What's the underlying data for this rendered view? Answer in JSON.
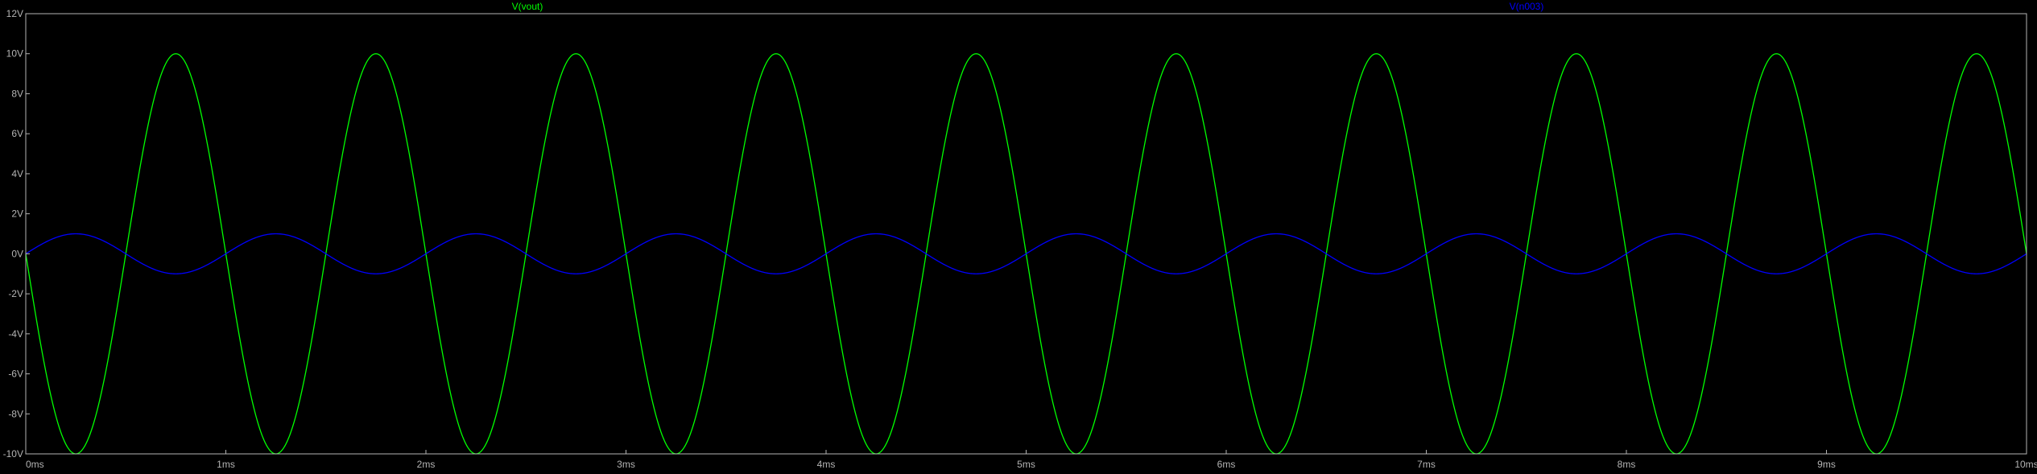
{
  "chart_data": {
    "type": "line",
    "title": "",
    "xlabel": "",
    "ylabel": "",
    "xlim": [
      0,
      10
    ],
    "ylim": [
      -10,
      12
    ],
    "x_unit": "ms",
    "y_unit": "V",
    "grid": false,
    "legend_position": "top",
    "x_ticks": [
      "0ms",
      "1ms",
      "2ms",
      "3ms",
      "4ms",
      "5ms",
      "6ms",
      "7ms",
      "8ms",
      "9ms",
      "10ms"
    ],
    "y_ticks": [
      "-10V",
      "-8V",
      "-6V",
      "-4V",
      "-2V",
      "0V",
      "2V",
      "4V",
      "6V",
      "8V",
      "10V",
      "12V"
    ],
    "series": [
      {
        "name": "V(vout)",
        "color": "#00ff00",
        "waveform": "sine",
        "amplitude": 10,
        "offset": 0,
        "frequency_per_ms": 1,
        "phase_deg": 180,
        "x": [
          0,
          0.25,
          0.5,
          0.75,
          1,
          1.25,
          1.5,
          1.75,
          2,
          2.25,
          2.5,
          2.75,
          3,
          3.25,
          3.5,
          3.75,
          4,
          4.25,
          4.5,
          4.75,
          5,
          5.25,
          5.5,
          5.75,
          6,
          6.25,
          6.5,
          6.75,
          7,
          7.25,
          7.5,
          7.75,
          8,
          8.25,
          8.5,
          8.75,
          9,
          9.25,
          9.5,
          9.75,
          10
        ],
        "values": [
          0,
          -10,
          0,
          10,
          0,
          -10,
          0,
          10,
          0,
          -10,
          0,
          10,
          0,
          -10,
          0,
          10,
          0,
          -10,
          0,
          10,
          0,
          -10,
          0,
          10,
          0,
          -10,
          0,
          10,
          0,
          -10,
          0,
          10,
          0,
          -10,
          0,
          10,
          0,
          -10,
          0,
          10,
          0
        ]
      },
      {
        "name": "V(n003)",
        "color": "#0000ff",
        "waveform": "sine",
        "amplitude": 1,
        "offset": 0,
        "frequency_per_ms": 1,
        "phase_deg": 0,
        "x": [
          0,
          0.25,
          0.5,
          0.75,
          1,
          1.25,
          1.5,
          1.75,
          2,
          2.25,
          2.5,
          2.75,
          3,
          3.25,
          3.5,
          3.75,
          4,
          4.25,
          4.5,
          4.75,
          5,
          5.25,
          5.5,
          5.75,
          6,
          6.25,
          6.5,
          6.75,
          7,
          7.25,
          7.5,
          7.75,
          8,
          8.25,
          8.5,
          8.75,
          9,
          9.25,
          9.5,
          9.75,
          10
        ],
        "values": [
          0,
          1,
          0,
          -1,
          0,
          1,
          0,
          -1,
          0,
          1,
          0,
          -1,
          0,
          1,
          0,
          -1,
          0,
          1,
          0,
          -1,
          0,
          1,
          0,
          -1,
          0,
          1,
          0,
          -1,
          0,
          1,
          0,
          -1,
          0,
          1,
          0,
          -1,
          0,
          1,
          0,
          -1,
          0
        ]
      }
    ]
  },
  "colors": {
    "background": "#000000",
    "frame": "#b4b4b4",
    "tick_text": "#b4b4b4"
  }
}
